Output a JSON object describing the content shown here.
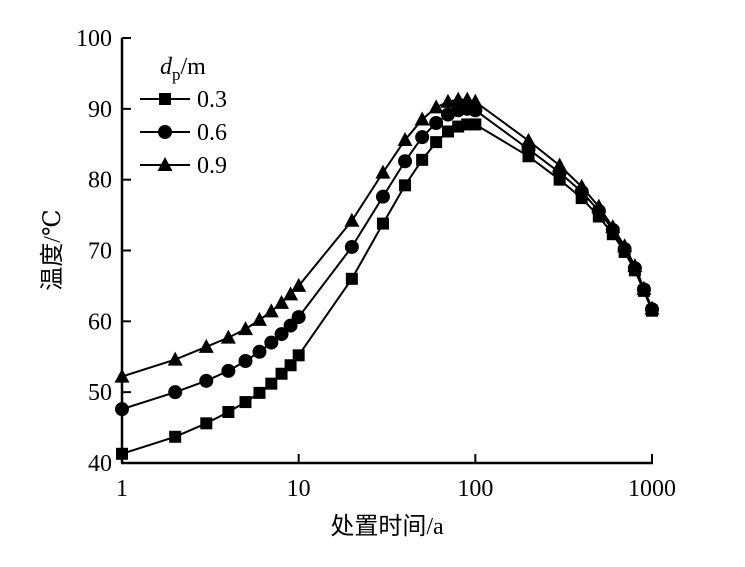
{
  "chart_data": {
    "type": "line",
    "title": "",
    "xlabel": "处置时间/a",
    "ylabel": "温度/℃",
    "xscale": "log",
    "xlim": [
      1,
      1000
    ],
    "ylim": [
      40,
      100
    ],
    "xticks": [
      "1",
      "10",
      "100",
      "1000"
    ],
    "xtick_values": [
      1,
      10,
      100,
      1000
    ],
    "yticks": [
      "40",
      "50",
      "60",
      "70",
      "80",
      "90",
      "100"
    ],
    "ytick_values": [
      40,
      50,
      60,
      70,
      80,
      90,
      100
    ],
    "grid": false,
    "legend": {
      "title_main": "d",
      "title_sub": "p",
      "title_unit": "/m",
      "placement": "top-left"
    },
    "x": [
      1,
      2,
      3,
      4,
      5,
      6,
      7,
      8,
      9,
      10,
      20,
      30,
      40,
      50,
      60,
      70,
      80,
      90,
      100,
      200,
      300,
      400,
      500,
      600,
      700,
      800,
      900,
      1000
    ],
    "series": [
      {
        "name": "0.3",
        "marker": "square",
        "values": [
          41.3,
          43.7,
          45.6,
          47.2,
          48.6,
          49.9,
          51.2,
          52.6,
          53.8,
          55.2,
          66.0,
          73.8,
          79.2,
          82.8,
          85.3,
          86.8,
          87.5,
          87.8,
          87.8,
          83.3,
          80.0,
          77.4,
          74.8,
          72.3,
          69.8,
          67.2,
          64.3,
          61.5
        ]
      },
      {
        "name": "0.6",
        "marker": "circle",
        "values": [
          47.6,
          50.0,
          51.6,
          53.0,
          54.4,
          55.7,
          57.0,
          58.2,
          59.4,
          60.6,
          70.5,
          77.6,
          82.6,
          86.0,
          88.0,
          89.2,
          89.8,
          90.0,
          89.8,
          84.3,
          81.0,
          78.3,
          75.6,
          72.9,
          70.2,
          67.5,
          64.5,
          61.7
        ]
      },
      {
        "name": "0.9",
        "marker": "triangle",
        "values": [
          52.2,
          54.6,
          56.4,
          57.7,
          58.9,
          60.2,
          61.4,
          62.6,
          63.8,
          65.0,
          74.2,
          81.0,
          85.6,
          88.5,
          90.2,
          91.0,
          91.3,
          91.3,
          91.0,
          85.5,
          82.0,
          79.0,
          76.2,
          73.3,
          70.6,
          67.8,
          64.6,
          61.8
        ]
      }
    ]
  }
}
